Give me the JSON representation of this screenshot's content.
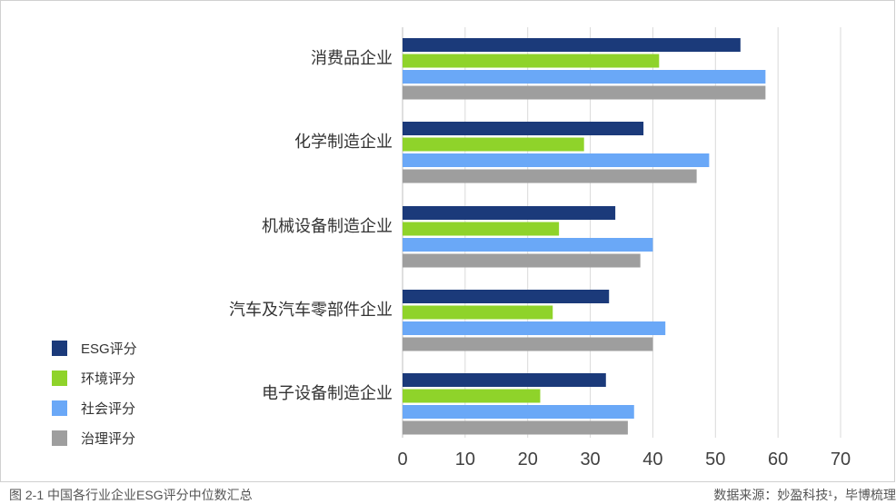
{
  "caption": "图 2-1 中国各行业企业ESG评分中位数汇总",
  "source": "数据来源：妙盈科技¹，毕博梳理",
  "chart_data": {
    "type": "bar",
    "orientation": "horizontal",
    "categories": [
      "消费品企业",
      "化学制造企业",
      "机械设备制造企业",
      "汽车及汽车零部件企业",
      "电子设备制造企业"
    ],
    "series": [
      {
        "name": "ESG评分",
        "color": "#1b3a7a",
        "values": [
          54,
          38.5,
          34,
          33,
          32.5
        ]
      },
      {
        "name": "环境评分",
        "color": "#8fd32a",
        "values": [
          41,
          29,
          25,
          24,
          22
        ]
      },
      {
        "name": "社会评分",
        "color": "#6aa8f7",
        "values": [
          58,
          49,
          40,
          42,
          37
        ]
      },
      {
        "name": "治理评分",
        "color": "#9e9e9e",
        "values": [
          58,
          47,
          38,
          40,
          36
        ]
      }
    ],
    "xlim": [
      0,
      70
    ],
    "xticks": [
      "0",
      "10",
      "20",
      "30",
      "40",
      "50",
      "60",
      "70"
    ],
    "grid": true,
    "legend_position": "bottom-left"
  }
}
